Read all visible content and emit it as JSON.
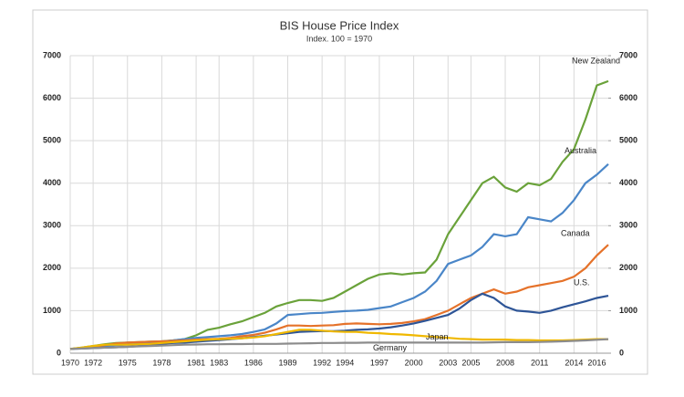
{
  "chart_data": {
    "type": "line",
    "title": "BIS House Price Index",
    "subtitle": "Index. 100 = 1970",
    "x": [
      1970,
      1971,
      1972,
      1973,
      1974,
      1975,
      1976,
      1977,
      1978,
      1979,
      1980,
      1981,
      1982,
      1983,
      1984,
      1985,
      1986,
      1987,
      1988,
      1989,
      1990,
      1991,
      1992,
      1993,
      1994,
      1995,
      1996,
      1997,
      1998,
      1999,
      2000,
      2001,
      2002,
      2003,
      2004,
      2005,
      2006,
      2007,
      2008,
      2009,
      2010,
      2011,
      2012,
      2013,
      2014,
      2015,
      2016,
      2017
    ],
    "series": [
      {
        "name": "New Zealand",
        "color": "#6aa23a",
        "values": [
          100,
          130,
          170,
          210,
          240,
          250,
          260,
          270,
          280,
          300,
          330,
          420,
          550,
          600,
          680,
          750,
          850,
          950,
          1100,
          1180,
          1250,
          1250,
          1230,
          1300,
          1450,
          1600,
          1750,
          1850,
          1880,
          1850,
          1880,
          1900,
          2200,
          2800,
          3200,
          3600,
          4000,
          4150,
          3900,
          3800,
          4000,
          3950,
          4100,
          4500,
          4800,
          5500,
          6300,
          6400
        ]
      },
      {
        "name": "Australia",
        "color": "#4a86c8",
        "values": [
          100,
          120,
          140,
          170,
          190,
          200,
          220,
          240,
          270,
          300,
          330,
          360,
          380,
          400,
          420,
          450,
          500,
          560,
          700,
          900,
          920,
          940,
          950,
          970,
          990,
          1000,
          1020,
          1060,
          1100,
          1200,
          1300,
          1450,
          1700,
          2100,
          2200,
          2300,
          2500,
          2800,
          2750,
          2800,
          3200,
          3150,
          3100,
          3300,
          3600,
          4000,
          4200,
          4450
        ]
      },
      {
        "name": "Canada",
        "color": "#e5722a",
        "values": [
          100,
          120,
          150,
          190,
          230,
          250,
          260,
          270,
          280,
          290,
          300,
          320,
          330,
          340,
          360,
          400,
          430,
          480,
          560,
          650,
          650,
          640,
          650,
          660,
          690,
          700,
          690,
          680,
          690,
          710,
          750,
          800,
          900,
          1000,
          1150,
          1300,
          1400,
          1500,
          1400,
          1450,
          1550,
          1600,
          1650,
          1700,
          1800,
          2000,
          2300,
          2550
        ]
      },
      {
        "name": "U.S.",
        "color": "#2e5597",
        "values": [
          100,
          110,
          120,
          130,
          140,
          150,
          170,
          190,
          220,
          240,
          250,
          270,
          290,
          310,
          330,
          350,
          380,
          410,
          440,
          470,
          500,
          510,
          520,
          520,
          530,
          550,
          560,
          580,
          610,
          650,
          700,
          760,
          830,
          900,
          1050,
          1250,
          1400,
          1300,
          1100,
          1000,
          980,
          950,
          1000,
          1080,
          1150,
          1220,
          1300,
          1350
        ]
      },
      {
        "name": "Japan",
        "color": "#f0b800",
        "values": [
          100,
          130,
          170,
          200,
          200,
          200,
          210,
          220,
          240,
          260,
          280,
          300,
          320,
          330,
          340,
          350,
          370,
          400,
          450,
          500,
          550,
          550,
          530,
          510,
          500,
          500,
          480,
          470,
          450,
          440,
          420,
          400,
          380,
          360,
          340,
          330,
          320,
          320,
          320,
          310,
          310,
          300,
          300,
          300,
          310,
          320,
          330,
          330
        ]
      },
      {
        "name": "Germany",
        "color": "#8c8c8c",
        "values": [
          100,
          110,
          120,
          130,
          140,
          150,
          160,
          170,
          180,
          190,
          200,
          205,
          210,
          210,
          215,
          215,
          220,
          220,
          220,
          225,
          230,
          235,
          240,
          240,
          245,
          245,
          250,
          250,
          250,
          250,
          250,
          250,
          250,
          250,
          250,
          250,
          250,
          255,
          260,
          260,
          260,
          265,
          270,
          280,
          290,
          300,
          315,
          330
        ]
      }
    ],
    "xlim": [
      1970,
      2017
    ],
    "xticks": [
      1970,
      1972,
      1975,
      1978,
      1981,
      1983,
      1986,
      1989,
      1992,
      1994,
      1997,
      2000,
      2003,
      2005,
      2008,
      2011,
      2014,
      2016
    ],
    "ylim": [
      0,
      7000
    ],
    "yticks": [
      0,
      1000,
      2000,
      3000,
      4000,
      5000,
      6000,
      7000
    ],
    "y2lim": [
      0,
      7000
    ],
    "y2ticks": [
      0,
      1000,
      2000,
      3000,
      4000,
      5000,
      6000,
      7000
    ],
    "grid": true
  }
}
